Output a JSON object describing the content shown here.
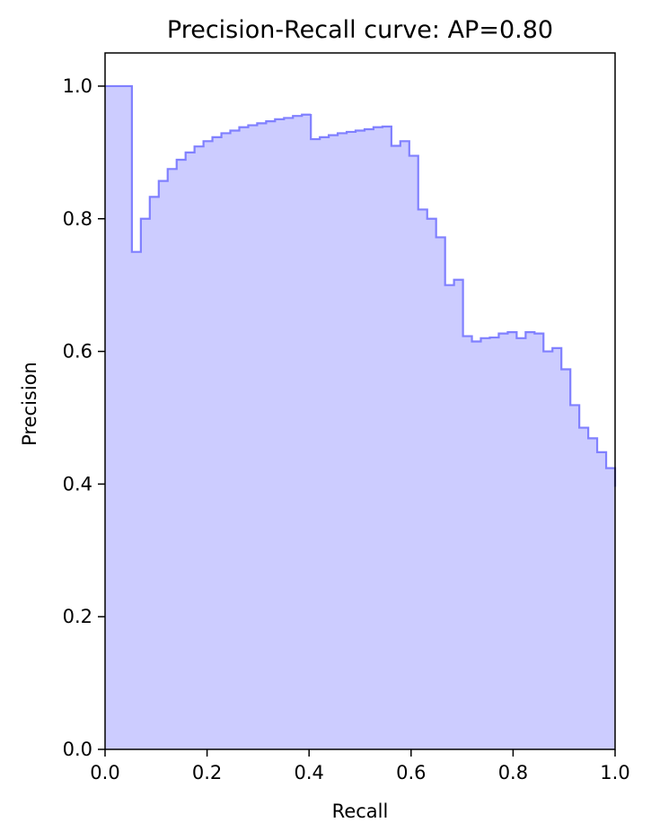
{
  "chart_data": {
    "type": "area",
    "title": "Precision-Recall curve: AP=0.80",
    "xlabel": "Recall",
    "ylabel": "Precision",
    "xlim": [
      0.0,
      1.0
    ],
    "ylim": [
      0.0,
      1.05
    ],
    "xticks": [
      "0.0",
      "0.2",
      "0.4",
      "0.6",
      "0.8",
      "1.0"
    ],
    "yticks": [
      "0.0",
      "0.2",
      "0.4",
      "0.6",
      "0.8",
      "1.0"
    ],
    "grid": false,
    "step": "post",
    "colors": {
      "fill": "#ccccff",
      "line": "#8080ff",
      "axes": "#000000",
      "background": "#ffffff"
    },
    "series": [
      {
        "recall": [
          0.0,
          0.0526,
          0.0526,
          0.0702,
          0.0877,
          0.1053,
          0.1228,
          0.1404,
          0.1579,
          0.1754,
          0.193,
          0.2105,
          0.2281,
          0.2456,
          0.2632,
          0.2807,
          0.2982,
          0.3158,
          0.3333,
          0.3509,
          0.3684,
          0.386,
          0.4035,
          0.4035,
          0.4211,
          0.4386,
          0.4561,
          0.4737,
          0.4912,
          0.5088,
          0.5263,
          0.5439,
          0.5614,
          0.5789,
          0.5965,
          0.614,
          0.6316,
          0.6491,
          0.6667,
          0.6842,
          0.7018,
          0.7193,
          0.7368,
          0.7544,
          0.7719,
          0.7895,
          0.807,
          0.8246,
          0.8421,
          0.8596,
          0.8772,
          0.8947,
          0.9123,
          0.9298,
          0.9474,
          0.9649,
          0.9825,
          1.0
        ],
        "precision": [
          1.0,
          1.0,
          0.75,
          0.8,
          0.833,
          0.857,
          0.875,
          0.889,
          0.9,
          0.909,
          0.917,
          0.923,
          0.929,
          0.933,
          0.938,
          0.941,
          0.944,
          0.947,
          0.95,
          0.952,
          0.955,
          0.957,
          0.958,
          0.92,
          0.923,
          0.926,
          0.929,
          0.931,
          0.933,
          0.935,
          0.938,
          0.939,
          0.91,
          0.917,
          0.895,
          0.814,
          0.8,
          0.772,
          0.7,
          0.708,
          0.623,
          0.615,
          0.62,
          0.621,
          0.627,
          0.629,
          0.62,
          0.629,
          0.627,
          0.6,
          0.605,
          0.573,
          0.519,
          0.485,
          0.469,
          0.448,
          0.424,
          0.396
        ]
      }
    ]
  }
}
